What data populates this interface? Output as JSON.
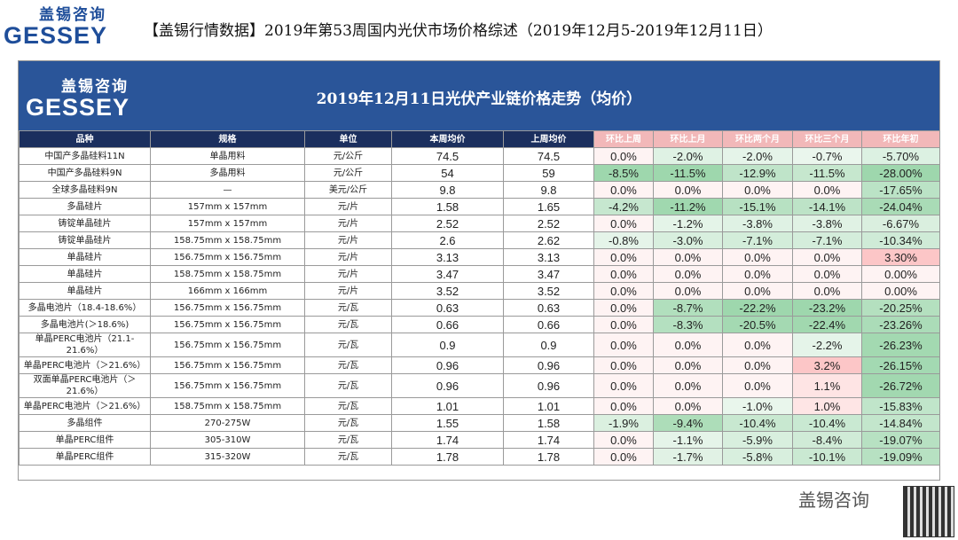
{
  "logo": {
    "name": "盖锡咨询",
    "brand": "GESSEY"
  },
  "header": {
    "title": "【盖锡行情数据】2019年第53周国内光伏市场价格综述（2019年12月5-2019年12月11日）"
  },
  "table": {
    "title": "2019年12月11日光伏产业链价格走势（均价）",
    "columns": [
      "品种",
      "规格",
      "单位",
      "本周均价",
      "上周均价",
      "环比上周",
      "环比上月",
      "环比两个月",
      "环比三个月",
      "环比年初"
    ],
    "rows": [
      [
        "中国产多晶硅料11N",
        "单晶用料",
        "元/公斤",
        "74.5",
        "74.5",
        "0.0%",
        "-2.0%",
        "-2.0%",
        "-0.7%",
        "-5.70%"
      ],
      [
        "中国产多晶硅料9N",
        "多晶用料",
        "元/公斤",
        "54",
        "59",
        "-8.5%",
        "-11.5%",
        "-12.9%",
        "-11.5%",
        "-28.00%"
      ],
      [
        "全球多晶硅料9N",
        "—",
        "美元/公斤",
        "9.8",
        "9.8",
        "0.0%",
        "0.0%",
        "0.0%",
        "0.0%",
        "-17.65%"
      ],
      [
        "多晶硅片",
        "157mm x 157mm",
        "元/片",
        "1.58",
        "1.65",
        "-4.2%",
        "-11.2%",
        "-15.1%",
        "-14.1%",
        "-24.04%"
      ],
      [
        "铸锭单晶硅片",
        "157mm x 157mm",
        "元/片",
        "2.52",
        "2.52",
        "0.0%",
        "-1.2%",
        "-3.8%",
        "-3.8%",
        "-6.67%"
      ],
      [
        "铸锭单晶硅片",
        "158.75mm x 158.75mm",
        "元/片",
        "2.6",
        "2.62",
        "-0.8%",
        "-3.0%",
        "-7.1%",
        "-7.1%",
        "-10.34%"
      ],
      [
        "单晶硅片",
        "156.75mm x 156.75mm",
        "元/片",
        "3.13",
        "3.13",
        "0.0%",
        "0.0%",
        "0.0%",
        "0.0%",
        "3.30%"
      ],
      [
        "单晶硅片",
        "158.75mm x 158.75mm",
        "元/片",
        "3.47",
        "3.47",
        "0.0%",
        "0.0%",
        "0.0%",
        "0.0%",
        "0.00%"
      ],
      [
        "单晶硅片",
        "166mm x 166mm",
        "元/片",
        "3.52",
        "3.52",
        "0.0%",
        "0.0%",
        "0.0%",
        "0.0%",
        "0.00%"
      ],
      [
        "多晶电池片（18.4-18.6%）",
        "156.75mm x 156.75mm",
        "元/瓦",
        "0.63",
        "0.63",
        "0.0%",
        "-8.7%",
        "-22.2%",
        "-23.2%",
        "-20.25%"
      ],
      [
        "多晶电池片(＞18.6%)",
        "156.75mm x 156.75mm",
        "元/瓦",
        "0.66",
        "0.66",
        "0.0%",
        "-8.3%",
        "-20.5%",
        "-22.4%",
        "-23.26%"
      ],
      [
        "单晶PERC电池片（21.1-21.6%）",
        "156.75mm x 156.75mm",
        "元/瓦",
        "0.9",
        "0.9",
        "0.0%",
        "0.0%",
        "0.0%",
        "-2.2%",
        "-26.23%"
      ],
      [
        "单晶PERC电池片（＞21.6%）",
        "156.75mm x 156.75mm",
        "元/瓦",
        "0.96",
        "0.96",
        "0.0%",
        "0.0%",
        "0.0%",
        "3.2%",
        "-26.15%"
      ],
      [
        "双面单晶PERC电池片（＞21.6%）",
        "156.75mm x 156.75mm",
        "元/瓦",
        "0.96",
        "0.96",
        "0.0%",
        "0.0%",
        "0.0%",
        "1.1%",
        "-26.72%"
      ],
      [
        "单晶PERC电池片（＞21.6%）",
        "158.75mm x 158.75mm",
        "元/瓦",
        "1.01",
        "1.01",
        "0.0%",
        "0.0%",
        "-1.0%",
        "1.0%",
        "-15.83%"
      ],
      [
        "多晶组件",
        "270-275W",
        "元/瓦",
        "1.55",
        "1.58",
        "-1.9%",
        "-9.4%",
        "-10.4%",
        "-10.4%",
        "-14.84%"
      ],
      [
        "单晶PERC组件",
        "305-310W",
        "元/瓦",
        "1.74",
        "1.74",
        "0.0%",
        "-1.1%",
        "-5.9%",
        "-8.4%",
        "-19.07%"
      ],
      [
        "单晶PERC组件",
        "315-320W",
        "元/瓦",
        "1.78",
        "1.78",
        "0.0%",
        "-1.7%",
        "-5.8%",
        "-10.1%",
        "-19.09%"
      ]
    ]
  },
  "watermark": "盖锡咨询"
}
